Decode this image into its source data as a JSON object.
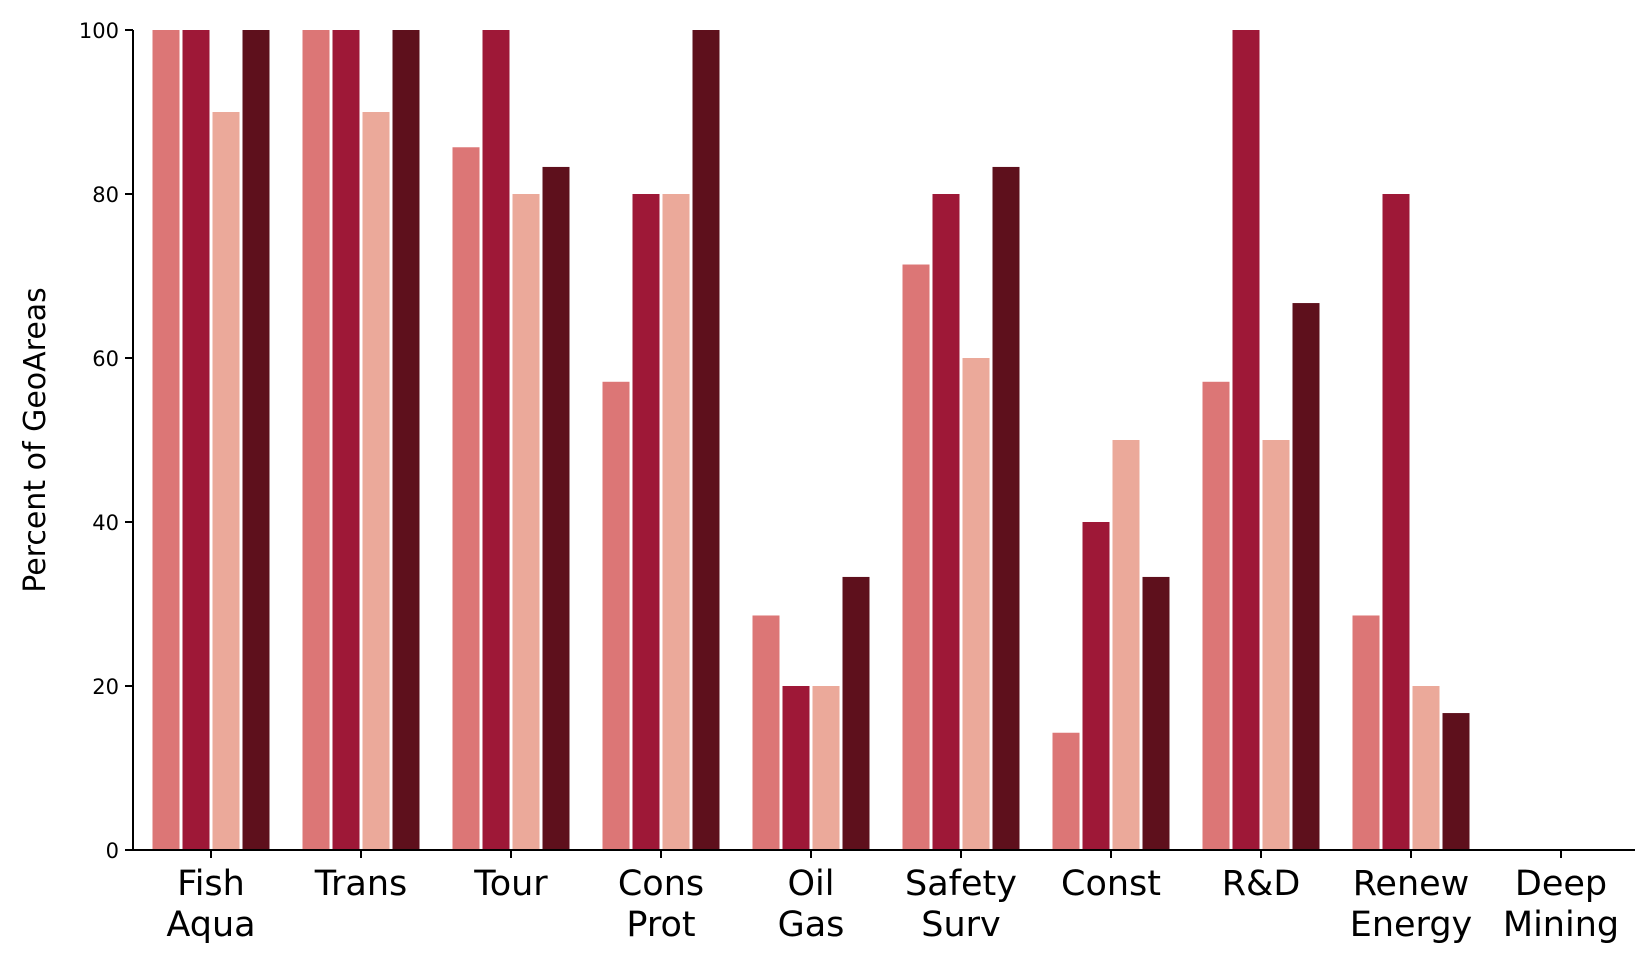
{
  "chart_data": {
    "type": "bar",
    "categories": [
      [
        "Fish",
        "Aqua"
      ],
      [
        "Trans"
      ],
      [
        "Tour"
      ],
      [
        "Cons",
        "Prot"
      ],
      [
        "Oil",
        "Gas"
      ],
      [
        "Safety",
        "Surv"
      ],
      [
        "Const"
      ],
      [
        "R&D"
      ],
      [
        "Renew",
        "Energy"
      ],
      [
        "Deep",
        "Mining"
      ]
    ],
    "series": [
      {
        "color": "#dc7676",
        "values": [
          100,
          100,
          85.7,
          57.1,
          28.6,
          71.4,
          14.3,
          57.1,
          28.6,
          0
        ]
      },
      {
        "color": "#9e1837",
        "values": [
          100,
          100,
          100,
          80,
          20,
          80,
          40,
          100,
          80,
          0
        ]
      },
      {
        "color": "#eba99a",
        "values": [
          90,
          90,
          80,
          80,
          20,
          60,
          50,
          50,
          20,
          0
        ]
      },
      {
        "color": "#5e101c",
        "values": [
          100,
          100,
          83.3,
          100,
          33.3,
          83.3,
          33.3,
          66.7,
          16.7,
          0
        ]
      }
    ],
    "ylabel": "Percent of GeoAreas",
    "xlabel": "",
    "ylim": [
      0,
      100
    ],
    "yticks": [
      0,
      20,
      40,
      60,
      80,
      100
    ],
    "grid": false,
    "legend": "none"
  }
}
